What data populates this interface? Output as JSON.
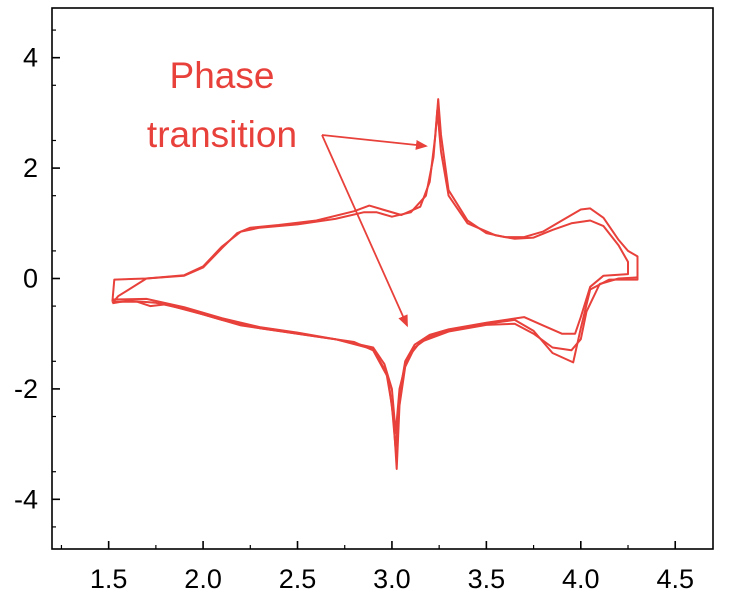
{
  "chart_data": {
    "type": "line",
    "title": "",
    "xlabel": "",
    "ylabel": "",
    "xlim": [
      1.2,
      4.7
    ],
    "ylim": [
      -4.9,
      4.9
    ],
    "x_ticks": [
      1.5,
      2.0,
      2.5,
      3.0,
      3.5,
      4.0,
      4.5
    ],
    "x_tick_labels": [
      "1.5",
      "2.0",
      "2.5",
      "3.0",
      "3.5",
      "4.0",
      "4.5"
    ],
    "y_ticks": [
      4,
      2,
      0,
      -2,
      -4
    ],
    "y_tick_labels": [
      "4",
      "2",
      "0",
      "-2",
      "-4"
    ],
    "grid": false,
    "legend": "none",
    "color": "#e8403a",
    "series": [
      {
        "values": [
          [
            1.52,
            -0.42
          ],
          [
            1.53,
            -0.02
          ],
          [
            1.7,
            0.0
          ],
          [
            1.9,
            0.05
          ],
          [
            2.0,
            0.2
          ],
          [
            2.1,
            0.55
          ],
          [
            2.18,
            0.82
          ],
          [
            2.25,
            0.92
          ],
          [
            2.4,
            0.97
          ],
          [
            2.6,
            1.05
          ],
          [
            2.8,
            1.22
          ],
          [
            2.88,
            1.32
          ],
          [
            2.95,
            1.25
          ],
          [
            3.05,
            1.15
          ],
          [
            3.15,
            1.3
          ],
          [
            3.2,
            1.75
          ],
          [
            3.23,
            2.6
          ],
          [
            3.245,
            3.25
          ],
          [
            3.26,
            2.6
          ],
          [
            3.3,
            1.6
          ],
          [
            3.4,
            1.05
          ],
          [
            3.5,
            0.82
          ],
          [
            3.6,
            0.75
          ],
          [
            3.7,
            0.75
          ],
          [
            3.8,
            0.85
          ],
          [
            3.9,
            1.05
          ],
          [
            4.0,
            1.25
          ],
          [
            4.05,
            1.27
          ],
          [
            4.12,
            1.1
          ],
          [
            4.2,
            0.7
          ],
          [
            4.25,
            0.5
          ],
          [
            4.3,
            0.4
          ],
          [
            4.3,
            -0.02
          ],
          [
            4.15,
            -0.02
          ],
          [
            4.05,
            -0.2
          ],
          [
            4.0,
            -0.9
          ],
          [
            3.96,
            -1.52
          ],
          [
            3.85,
            -1.35
          ],
          [
            3.75,
            -0.95
          ],
          [
            3.65,
            -0.75
          ],
          [
            3.5,
            -0.82
          ],
          [
            3.4,
            -0.88
          ],
          [
            3.3,
            -0.95
          ],
          [
            3.2,
            -1.05
          ],
          [
            3.12,
            -1.25
          ],
          [
            3.07,
            -1.6
          ],
          [
            3.04,
            -2.3
          ],
          [
            3.025,
            -3.45
          ],
          [
            3.01,
            -2.6
          ],
          [
            2.98,
            -1.8
          ],
          [
            2.9,
            -1.3
          ],
          [
            2.8,
            -1.15
          ],
          [
            2.6,
            -1.05
          ],
          [
            2.4,
            -0.95
          ],
          [
            2.2,
            -0.85
          ],
          [
            2.0,
            -0.65
          ],
          [
            1.8,
            -0.47
          ],
          [
            1.72,
            -0.5
          ],
          [
            1.65,
            -0.42
          ],
          [
            1.52,
            -0.42
          ]
        ]
      },
      {
        "values": [
          [
            1.52,
            -0.45
          ],
          [
            1.55,
            -0.32
          ],
          [
            1.7,
            0.0
          ],
          [
            1.9,
            0.06
          ],
          [
            2.0,
            0.22
          ],
          [
            2.1,
            0.58
          ],
          [
            2.2,
            0.85
          ],
          [
            2.3,
            0.92
          ],
          [
            2.5,
            0.98
          ],
          [
            2.7,
            1.08
          ],
          [
            2.85,
            1.2
          ],
          [
            2.92,
            1.2
          ],
          [
            3.0,
            1.12
          ],
          [
            3.1,
            1.2
          ],
          [
            3.18,
            1.5
          ],
          [
            3.22,
            2.2
          ],
          [
            3.24,
            3.05
          ],
          [
            3.26,
            2.3
          ],
          [
            3.3,
            1.5
          ],
          [
            3.4,
            1.0
          ],
          [
            3.55,
            0.78
          ],
          [
            3.65,
            0.72
          ],
          [
            3.75,
            0.74
          ],
          [
            3.85,
            0.88
          ],
          [
            3.95,
            1.0
          ],
          [
            4.05,
            1.05
          ],
          [
            4.12,
            0.95
          ],
          [
            4.2,
            0.6
          ],
          [
            4.25,
            0.3
          ],
          [
            4.25,
            0.08
          ],
          [
            4.12,
            0.05
          ],
          [
            4.05,
            -0.15
          ],
          [
            4.0,
            -0.7
          ],
          [
            3.97,
            -1.0
          ],
          [
            3.9,
            -1.0
          ],
          [
            3.8,
            -0.85
          ],
          [
            3.7,
            -0.7
          ],
          [
            3.5,
            -0.8
          ],
          [
            3.3,
            -0.92
          ],
          [
            3.2,
            -1.02
          ],
          [
            3.12,
            -1.2
          ],
          [
            3.07,
            -1.5
          ],
          [
            3.04,
            -2.1
          ],
          [
            3.02,
            -3.1
          ],
          [
            3.0,
            -2.3
          ],
          [
            2.97,
            -1.7
          ],
          [
            2.9,
            -1.28
          ],
          [
            2.7,
            -1.1
          ],
          [
            2.5,
            -1.0
          ],
          [
            2.3,
            -0.9
          ],
          [
            2.1,
            -0.75
          ],
          [
            1.9,
            -0.55
          ],
          [
            1.75,
            -0.44
          ],
          [
            1.6,
            -0.4
          ],
          [
            1.52,
            -0.45
          ]
        ]
      },
      {
        "values": [
          [
            1.52,
            -0.38
          ],
          [
            1.7,
            -0.37
          ],
          [
            1.9,
            -0.52
          ],
          [
            2.1,
            -0.72
          ],
          [
            2.3,
            -0.88
          ],
          [
            2.5,
            -0.98
          ],
          [
            2.7,
            -1.1
          ],
          [
            2.9,
            -1.25
          ],
          [
            2.96,
            -1.55
          ],
          [
            3.0,
            -2.0
          ],
          [
            3.02,
            -2.8
          ],
          [
            3.04,
            -2.0
          ],
          [
            3.08,
            -1.45
          ],
          [
            3.15,
            -1.15
          ],
          [
            3.3,
            -0.96
          ],
          [
            3.5,
            -0.84
          ],
          [
            3.65,
            -0.82
          ],
          [
            3.75,
            -1.0
          ],
          [
            3.85,
            -1.25
          ],
          [
            3.95,
            -1.3
          ],
          [
            4.0,
            -1.1
          ],
          [
            4.03,
            -0.6
          ],
          [
            4.1,
            -0.1
          ],
          [
            4.2,
            0.0
          ],
          [
            4.3,
            0.02
          ]
        ]
      }
    ],
    "annotation": {
      "lines": [
        "Phase",
        "transition"
      ],
      "color": "#e8403a",
      "arrow_targets": [
        [
          3.18,
          2.4
        ],
        [
          3.08,
          -0.85
        ]
      ]
    }
  }
}
